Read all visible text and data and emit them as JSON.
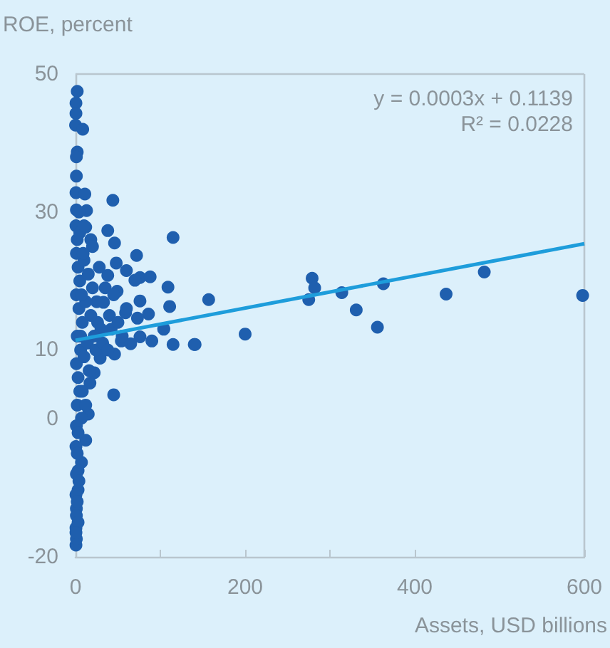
{
  "chart_data": {
    "type": "scatter",
    "xlabel": "Assets, USD billions",
    "ylabel": "ROE, percent",
    "annotations": [
      "y = 0.0003x + 0.1139",
      "R² = 0.0228"
    ],
    "xlim": [
      0,
      600
    ],
    "xticks": [
      0,
      {
        "value": 100,
        "label": null
      },
      200,
      {
        "value": 300,
        "label": null
      },
      400,
      600
    ],
    "ylim": [
      -20,
      50
    ],
    "yticks": [
      -20,
      0,
      10,
      30,
      50
    ],
    "grid": false,
    "marker": "circle",
    "series": [
      {
        "color": "#1f5fae",
        "x": [
          2,
          0.5,
          0.5,
          0,
          8.5,
          2,
          1,
          1,
          0.5,
          11,
          44,
          1,
          13,
          12,
          18,
          38,
          46,
          115,
          72,
          48,
          60,
          38,
          76,
          88,
          70,
          109,
          157,
          111,
          76,
          49,
          86,
          73,
          104,
          59,
          33,
          26,
          76,
          90,
          115,
          140,
          104,
          65,
          54,
          46,
          29,
          22,
          17,
          45,
          15,
          7,
          12,
          7,
          3,
          3,
          1,
          0.5,
          0.5,
          1,
          0.5,
          2,
          1,
          3,
          5,
          1,
          4,
          8,
          2,
          6,
          1,
          3,
          5,
          2,
          1,
          3,
          0.5,
          2,
          1,
          4,
          0.5,
          2,
          1,
          3,
          0.5,
          10,
          15,
          20,
          25,
          12,
          18,
          30,
          22,
          14,
          35,
          28,
          40,
          10,
          16,
          24,
          8,
          12,
          20,
          32,
          42,
          50,
          55,
          45,
          60,
          38,
          6,
          7,
          9,
          5,
          4,
          10,
          141,
          200,
          279,
          282,
          275,
          314,
          331,
          356,
          363,
          437,
          482,
          598
        ],
        "values": [
          47.5,
          45.8,
          44.3,
          42.6,
          42,
          38.7,
          38,
          35.2,
          32.8,
          32.6,
          31.7,
          30.3,
          30.2,
          27.8,
          26,
          27.3,
          25.5,
          26.3,
          23.7,
          22.6,
          21.5,
          20.8,
          20.5,
          20.6,
          20.1,
          19.1,
          17.3,
          16.3,
          17.1,
          18.5,
          15.2,
          14.6,
          13.1,
          15.4,
          16.9,
          14,
          11.9,
          11.3,
          10.8,
          10.8,
          13,
          10.9,
          11.3,
          9.4,
          8.8,
          6.7,
          5.2,
          3.5,
          0.7,
          0.1,
          -3.1,
          -6.3,
          -7.5,
          -10.3,
          -13,
          -15.8,
          -18.3,
          -17.4,
          28,
          26,
          24,
          22,
          20,
          18,
          16,
          14,
          12,
          10,
          8,
          6,
          4,
          2,
          -1,
          -2,
          -4,
          -5,
          -8,
          -9,
          -11,
          -12,
          -14,
          -15,
          -16.5,
          23,
          21,
          19,
          17,
          17,
          15,
          13,
          12,
          11,
          19,
          22,
          15,
          9,
          7,
          10,
          4,
          2,
          25,
          11,
          13,
          14,
          12,
          18,
          16,
          10,
          12,
          18,
          24,
          27,
          30,
          28,
          10.8,
          12.3,
          20.4,
          19,
          17.3,
          18.3,
          15.8,
          13.3,
          19.6,
          18.1,
          21.3,
          17.9
        ]
      },
      {
        "type": "line",
        "color": "#1e9ddb",
        "x": [
          0,
          600
        ],
        "values": [
          11.4,
          25.4
        ],
        "marker": "none"
      }
    ]
  }
}
